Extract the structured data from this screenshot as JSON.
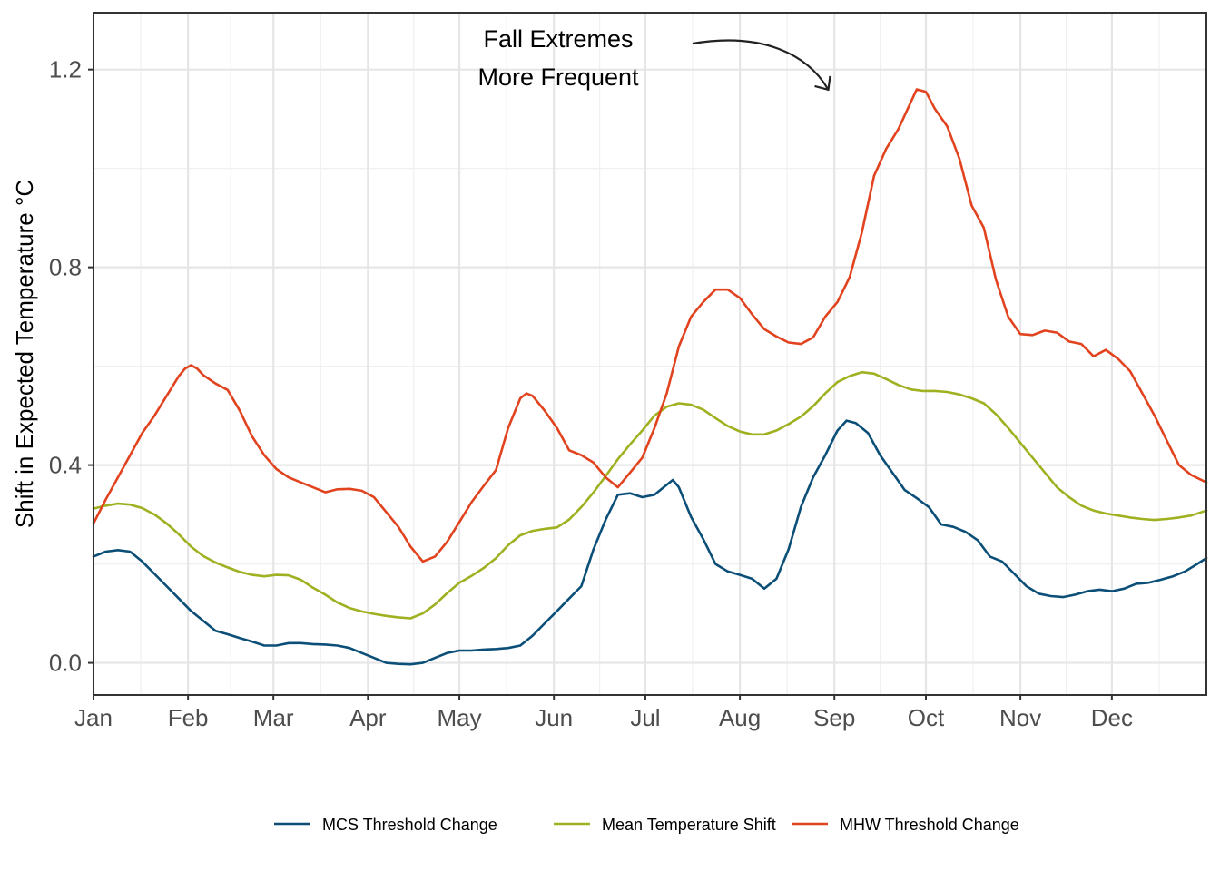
{
  "chart_data": {
    "type": "line",
    "title": "",
    "xlabel": "",
    "ylabel": "Shift in Expected Temperature °C",
    "x_ticks": [
      "Jan",
      "Feb",
      "Mar",
      "Apr",
      "May",
      "Jun",
      "Jul",
      "Aug",
      "Sep",
      "Oct",
      "Nov",
      "Dec"
    ],
    "x_tick_days": [
      1,
      32,
      60,
      91,
      121,
      152,
      182,
      213,
      244,
      274,
      305,
      335
    ],
    "xlim": [
      1,
      366
    ],
    "y_ticks": [
      0.0,
      0.4,
      0.8,
      1.2
    ],
    "y_tick_labels": [
      "0.0",
      "0.4",
      "0.8",
      "1.2"
    ],
    "ylim": [
      -0.065,
      1.315
    ],
    "grid": true,
    "legend_position": "bottom",
    "annotation": {
      "lines": [
        "Fall Extremes",
        "More Frequent"
      ],
      "arrow_target_day": 242,
      "arrow_target_value": 1.15
    },
    "series": [
      {
        "name": "MCS Threshold Change",
        "color": "#0b4f78",
        "points": [
          [
            1,
            0.215
          ],
          [
            5,
            0.225
          ],
          [
            9,
            0.228
          ],
          [
            13,
            0.225
          ],
          [
            17,
            0.205
          ],
          [
            21,
            0.18
          ],
          [
            25,
            0.155
          ],
          [
            29,
            0.13
          ],
          [
            33,
            0.105
          ],
          [
            37,
            0.085
          ],
          [
            41,
            0.065
          ],
          [
            45,
            0.058
          ],
          [
            49,
            0.05
          ],
          [
            53,
            0.043
          ],
          [
            57,
            0.035
          ],
          [
            61,
            0.035
          ],
          [
            65,
            0.04
          ],
          [
            69,
            0.04
          ],
          [
            73,
            0.038
          ],
          [
            77,
            0.037
          ],
          [
            81,
            0.035
          ],
          [
            85,
            0.03
          ],
          [
            89,
            0.02
          ],
          [
            93,
            0.01
          ],
          [
            97,
            0.0
          ],
          [
            101,
            -0.002
          ],
          [
            105,
            -0.003
          ],
          [
            109,
            0.0
          ],
          [
            113,
            0.01
          ],
          [
            117,
            0.02
          ],
          [
            121,
            0.025
          ],
          [
            125,
            0.025
          ],
          [
            129,
            0.027
          ],
          [
            133,
            0.028
          ],
          [
            137,
            0.03
          ],
          [
            141,
            0.035
          ],
          [
            145,
            0.055
          ],
          [
            149,
            0.08
          ],
          [
            153,
            0.105
          ],
          [
            157,
            0.13
          ],
          [
            161,
            0.155
          ],
          [
            165,
            0.23
          ],
          [
            169,
            0.29
          ],
          [
            173,
            0.34
          ],
          [
            177,
            0.343
          ],
          [
            181,
            0.335
          ],
          [
            185,
            0.34
          ],
          [
            189,
            0.36
          ],
          [
            191,
            0.37
          ],
          [
            193,
            0.355
          ],
          [
            197,
            0.295
          ],
          [
            201,
            0.25
          ],
          [
            205,
            0.2
          ],
          [
            209,
            0.185
          ],
          [
            213,
            0.178
          ],
          [
            217,
            0.17
          ],
          [
            221,
            0.15
          ],
          [
            225,
            0.17
          ],
          [
            229,
            0.23
          ],
          [
            233,
            0.315
          ],
          [
            237,
            0.375
          ],
          [
            241,
            0.42
          ],
          [
            245,
            0.47
          ],
          [
            248,
            0.49
          ],
          [
            251,
            0.485
          ],
          [
            255,
            0.465
          ],
          [
            259,
            0.42
          ],
          [
            263,
            0.385
          ],
          [
            267,
            0.35
          ],
          [
            271,
            0.333
          ],
          [
            275,
            0.315
          ],
          [
            279,
            0.28
          ],
          [
            283,
            0.275
          ],
          [
            287,
            0.265
          ],
          [
            291,
            0.248
          ],
          [
            295,
            0.215
          ],
          [
            299,
            0.205
          ],
          [
            303,
            0.18
          ],
          [
            307,
            0.155
          ],
          [
            311,
            0.14
          ],
          [
            315,
            0.135
          ],
          [
            319,
            0.133
          ],
          [
            323,
            0.138
          ],
          [
            327,
            0.145
          ],
          [
            331,
            0.148
          ],
          [
            335,
            0.145
          ],
          [
            339,
            0.15
          ],
          [
            343,
            0.16
          ],
          [
            347,
            0.162
          ],
          [
            351,
            0.168
          ],
          [
            355,
            0.175
          ],
          [
            359,
            0.185
          ],
          [
            363,
            0.2
          ],
          [
            366,
            0.212
          ]
        ]
      },
      {
        "name": "Mean Temperature Shift",
        "color": "#9fb020",
        "points": [
          [
            1,
            0.312
          ],
          [
            5,
            0.318
          ],
          [
            9,
            0.322
          ],
          [
            13,
            0.32
          ],
          [
            17,
            0.313
          ],
          [
            21,
            0.3
          ],
          [
            25,
            0.282
          ],
          [
            29,
            0.26
          ],
          [
            33,
            0.235
          ],
          [
            37,
            0.216
          ],
          [
            41,
            0.203
          ],
          [
            45,
            0.193
          ],
          [
            49,
            0.184
          ],
          [
            53,
            0.178
          ],
          [
            57,
            0.175
          ],
          [
            61,
            0.178
          ],
          [
            65,
            0.177
          ],
          [
            69,
            0.168
          ],
          [
            73,
            0.152
          ],
          [
            77,
            0.138
          ],
          [
            81,
            0.122
          ],
          [
            85,
            0.111
          ],
          [
            89,
            0.104
          ],
          [
            93,
            0.099
          ],
          [
            97,
            0.095
          ],
          [
            101,
            0.092
          ],
          [
            105,
            0.09
          ],
          [
            109,
            0.1
          ],
          [
            113,
            0.118
          ],
          [
            117,
            0.141
          ],
          [
            121,
            0.162
          ],
          [
            125,
            0.176
          ],
          [
            129,
            0.192
          ],
          [
            133,
            0.212
          ],
          [
            137,
            0.238
          ],
          [
            141,
            0.258
          ],
          [
            145,
            0.267
          ],
          [
            149,
            0.271
          ],
          [
            153,
            0.274
          ],
          [
            157,
            0.29
          ],
          [
            161,
            0.315
          ],
          [
            165,
            0.345
          ],
          [
            169,
            0.378
          ],
          [
            173,
            0.412
          ],
          [
            177,
            0.442
          ],
          [
            181,
            0.47
          ],
          [
            185,
            0.5
          ],
          [
            189,
            0.518
          ],
          [
            193,
            0.525
          ],
          [
            197,
            0.522
          ],
          [
            201,
            0.512
          ],
          [
            205,
            0.495
          ],
          [
            209,
            0.479
          ],
          [
            213,
            0.468
          ],
          [
            217,
            0.462
          ],
          [
            221,
            0.462
          ],
          [
            225,
            0.47
          ],
          [
            229,
            0.483
          ],
          [
            233,
            0.498
          ],
          [
            237,
            0.519
          ],
          [
            241,
            0.545
          ],
          [
            245,
            0.568
          ],
          [
            249,
            0.58
          ],
          [
            253,
            0.588
          ],
          [
            257,
            0.585
          ],
          [
            261,
            0.574
          ],
          [
            265,
            0.562
          ],
          [
            269,
            0.553
          ],
          [
            273,
            0.55
          ],
          [
            277,
            0.55
          ],
          [
            281,
            0.548
          ],
          [
            285,
            0.543
          ],
          [
            289,
            0.535
          ],
          [
            293,
            0.525
          ],
          [
            297,
            0.503
          ],
          [
            301,
            0.475
          ],
          [
            305,
            0.445
          ],
          [
            309,
            0.415
          ],
          [
            313,
            0.385
          ],
          [
            317,
            0.355
          ],
          [
            321,
            0.335
          ],
          [
            325,
            0.318
          ],
          [
            329,
            0.308
          ],
          [
            333,
            0.302
          ],
          [
            337,
            0.298
          ],
          [
            341,
            0.294
          ],
          [
            345,
            0.291
          ],
          [
            349,
            0.289
          ],
          [
            353,
            0.291
          ],
          [
            357,
            0.294
          ],
          [
            361,
            0.298
          ],
          [
            366,
            0.308
          ]
        ]
      },
      {
        "name": "MHW Threshold Change",
        "color": "#e2431f",
        "points": [
          [
            1,
            0.282
          ],
          [
            5,
            0.33
          ],
          [
            9,
            0.375
          ],
          [
            13,
            0.42
          ],
          [
            17,
            0.465
          ],
          [
            21,
            0.5
          ],
          [
            25,
            0.54
          ],
          [
            29,
            0.58
          ],
          [
            31,
            0.595
          ],
          [
            33,
            0.602
          ],
          [
            35,
            0.595
          ],
          [
            37,
            0.582
          ],
          [
            41,
            0.565
          ],
          [
            45,
            0.552
          ],
          [
            49,
            0.51
          ],
          [
            53,
            0.458
          ],
          [
            57,
            0.42
          ],
          [
            61,
            0.392
          ],
          [
            65,
            0.375
          ],
          [
            69,
            0.365
          ],
          [
            73,
            0.355
          ],
          [
            77,
            0.345
          ],
          [
            81,
            0.351
          ],
          [
            85,
            0.352
          ],
          [
            89,
            0.348
          ],
          [
            93,
            0.335
          ],
          [
            97,
            0.305
          ],
          [
            101,
            0.275
          ],
          [
            105,
            0.235
          ],
          [
            109,
            0.205
          ],
          [
            113,
            0.215
          ],
          [
            117,
            0.245
          ],
          [
            121,
            0.285
          ],
          [
            125,
            0.325
          ],
          [
            129,
            0.358
          ],
          [
            133,
            0.39
          ],
          [
            137,
            0.475
          ],
          [
            141,
            0.535
          ],
          [
            143,
            0.545
          ],
          [
            145,
            0.54
          ],
          [
            149,
            0.51
          ],
          [
            153,
            0.475
          ],
          [
            157,
            0.43
          ],
          [
            161,
            0.42
          ],
          [
            165,
            0.405
          ],
          [
            169,
            0.375
          ],
          [
            173,
            0.355
          ],
          [
            177,
            0.385
          ],
          [
            181,
            0.415
          ],
          [
            185,
            0.475
          ],
          [
            189,
            0.545
          ],
          [
            193,
            0.64
          ],
          [
            197,
            0.7
          ],
          [
            201,
            0.73
          ],
          [
            205,
            0.755
          ],
          [
            209,
            0.755
          ],
          [
            213,
            0.738
          ],
          [
            217,
            0.705
          ],
          [
            221,
            0.675
          ],
          [
            225,
            0.66
          ],
          [
            229,
            0.648
          ],
          [
            233,
            0.645
          ],
          [
            237,
            0.658
          ],
          [
            241,
            0.7
          ],
          [
            245,
            0.73
          ],
          [
            249,
            0.78
          ],
          [
            253,
            0.87
          ],
          [
            257,
            0.985
          ],
          [
            261,
            1.04
          ],
          [
            265,
            1.08
          ],
          [
            268,
            1.12
          ],
          [
            271,
            1.16
          ],
          [
            274,
            1.155
          ],
          [
            277,
            1.12
          ],
          [
            281,
            1.085
          ],
          [
            285,
            1.02
          ],
          [
            289,
            0.925
          ],
          [
            293,
            0.88
          ],
          [
            297,
            0.775
          ],
          [
            301,
            0.7
          ],
          [
            305,
            0.665
          ],
          [
            309,
            0.663
          ],
          [
            313,
            0.672
          ],
          [
            317,
            0.668
          ],
          [
            321,
            0.65
          ],
          [
            325,
            0.645
          ],
          [
            329,
            0.62
          ],
          [
            333,
            0.633
          ],
          [
            337,
            0.615
          ],
          [
            341,
            0.59
          ],
          [
            345,
            0.545
          ],
          [
            349,
            0.5
          ],
          [
            353,
            0.45
          ],
          [
            357,
            0.4
          ],
          [
            361,
            0.38
          ],
          [
            366,
            0.365
          ]
        ]
      }
    ]
  }
}
